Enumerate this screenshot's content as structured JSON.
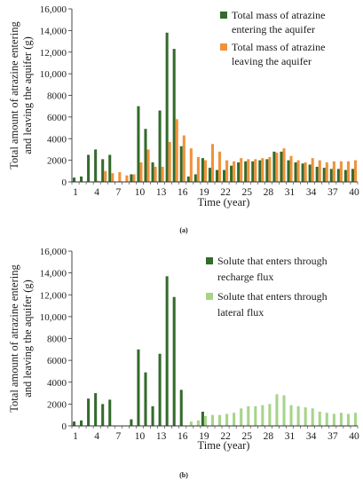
{
  "chart_data": [
    {
      "type": "bar",
      "panel_label": "(a)",
      "ylabel": "Total amount of atrazine entering and leaving the aquifer (g)",
      "xlabel": "Time (year)",
      "ylim": [
        0,
        16000
      ],
      "yticks": [
        "0",
        "2000",
        "4000",
        "6000",
        "8000",
        "10,000",
        "12,000",
        "14,000",
        "16,000"
      ],
      "xtick_labels": [
        "1",
        "4",
        "7",
        "10",
        "13",
        "16",
        "19",
        "22",
        "25",
        "28",
        "31",
        "34",
        "37",
        "40"
      ],
      "categories": [
        1,
        2,
        3,
        4,
        5,
        6,
        7,
        8,
        9,
        10,
        11,
        12,
        13,
        14,
        15,
        16,
        17,
        18,
        19,
        20,
        21,
        22,
        23,
        24,
        25,
        26,
        27,
        28,
        29,
        30,
        31,
        32,
        33,
        34,
        35,
        36,
        37,
        38,
        39,
        40
      ],
      "grid": false,
      "legend": "top-right",
      "series": [
        {
          "name": "Total mass of atrazine entering the aquifer",
          "color": "#336b2b",
          "values": [
            400,
            500,
            2500,
            3000,
            2100,
            2500,
            0,
            0,
            700,
            7000,
            4900,
            1800,
            6600,
            13800,
            12300,
            3300,
            500,
            700,
            2200,
            1300,
            1100,
            1100,
            1500,
            1800,
            1900,
            1900,
            2000,
            2100,
            2800,
            2800,
            2000,
            1800,
            1700,
            1600,
            1400,
            1300,
            1200,
            1200,
            1100,
            1200
          ]
        },
        {
          "name": "Total mass of atrazine leaving the aquifer",
          "color": "#f0923b",
          "values": [
            0,
            0,
            0,
            100,
            1000,
            800,
            900,
            600,
            700,
            1800,
            3000,
            1400,
            1400,
            3700,
            5800,
            4300,
            3100,
            2300,
            2000,
            3500,
            2800,
            2000,
            1900,
            2200,
            2100,
            2100,
            2200,
            2300,
            2700,
            3100,
            2400,
            2000,
            1800,
            2200,
            2000,
            1800,
            1900,
            1900,
            1900,
            2000
          ]
        }
      ]
    },
    {
      "type": "bar",
      "panel_label": "(b)",
      "ylabel": "Total amount of atrazine entering and leaving the aquifer (g)",
      "xlabel": "Time (year)",
      "ylim": [
        0,
        16000
      ],
      "yticks": [
        "0",
        "2000",
        "4000",
        "6000",
        "8000",
        "10,000",
        "12,000",
        "14,000",
        "16,000"
      ],
      "xtick_labels": [
        "1",
        "4",
        "7",
        "10",
        "13",
        "16",
        "19",
        "22",
        "25",
        "28",
        "31",
        "34",
        "37",
        "40"
      ],
      "categories": [
        1,
        2,
        3,
        4,
        5,
        6,
        7,
        8,
        9,
        10,
        11,
        12,
        13,
        14,
        15,
        16,
        17,
        18,
        19,
        20,
        21,
        22,
        23,
        24,
        25,
        26,
        27,
        28,
        29,
        30,
        31,
        32,
        33,
        34,
        35,
        36,
        37,
        38,
        39,
        40
      ],
      "grid": false,
      "legend": "top-right",
      "series": [
        {
          "name": "Solute that enters through recharge flux",
          "color": "#336b2b",
          "values": [
            400,
            500,
            2500,
            3000,
            2000,
            2400,
            0,
            0,
            600,
            7000,
            4900,
            1800,
            6600,
            13700,
            11800,
            3300,
            0,
            0,
            1300,
            0,
            0,
            0,
            0,
            0,
            0,
            0,
            0,
            0,
            0,
            0,
            0,
            0,
            0,
            0,
            0,
            0,
            0,
            0,
            0,
            0
          ]
        },
        {
          "name": "Solute that enters through lateral flux",
          "color": "#a6d48a",
          "values": [
            0,
            0,
            0,
            0,
            0,
            0,
            0,
            0,
            0,
            0,
            0,
            0,
            0,
            0,
            0,
            0,
            400,
            500,
            900,
            1000,
            1000,
            1100,
            1200,
            1600,
            1800,
            1800,
            1900,
            2000,
            2900,
            2800,
            1900,
            1800,
            1700,
            1600,
            1300,
            1200,
            1100,
            1200,
            1100,
            1200
          ]
        }
      ]
    }
  ]
}
